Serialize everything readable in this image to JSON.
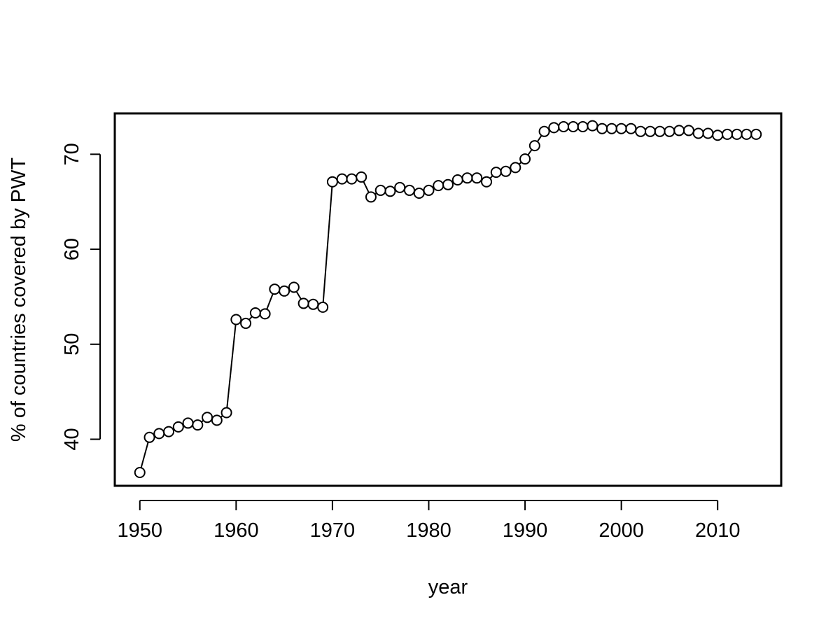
{
  "chart_data": {
    "type": "line",
    "title": "",
    "xlabel": "year",
    "ylabel": "% of countries covered by PWT",
    "xlim": [
      1947.4,
      2016.6
    ],
    "ylim": [
      35.1,
      74.3
    ],
    "xticks": [
      1950,
      1960,
      1970,
      1980,
      1990,
      2000,
      2010
    ],
    "yticks": [
      40,
      50,
      60,
      70
    ],
    "grid": false,
    "legend": "none",
    "marker": "open-circle",
    "series": [
      {
        "x": [
          1950,
          1951,
          1952,
          1953,
          1954,
          1955,
          1956,
          1957,
          1958,
          1959,
          1960,
          1961,
          1962,
          1963,
          1964,
          1965,
          1966,
          1967,
          1968,
          1969,
          1970,
          1971,
          1972,
          1973,
          1974,
          1975,
          1976,
          1977,
          1978,
          1979,
          1980,
          1981,
          1982,
          1983,
          1984,
          1985,
          1986,
          1987,
          1988,
          1989,
          1990,
          1991,
          1992,
          1993,
          1994,
          1995,
          1996,
          1997,
          1998,
          1999,
          2000,
          2001,
          2002,
          2003,
          2004,
          2005,
          2006,
          2007,
          2008,
          2009,
          2010,
          2011,
          2012,
          2013,
          2014
        ],
        "values": [
          36.5,
          40.2,
          40.6,
          40.8,
          41.3,
          41.7,
          41.5,
          42.3,
          42.0,
          42.8,
          52.6,
          52.2,
          53.3,
          53.2,
          55.8,
          55.6,
          56.0,
          54.3,
          54.2,
          53.9,
          67.1,
          67.4,
          67.4,
          67.6,
          65.5,
          66.2,
          66.1,
          66.5,
          66.2,
          65.9,
          66.2,
          66.7,
          66.8,
          67.3,
          67.5,
          67.5,
          67.1,
          68.1,
          68.2,
          68.6,
          69.5,
          70.9,
          72.4,
          72.8,
          72.9,
          72.9,
          72.9,
          73.0,
          72.7,
          72.7,
          72.7,
          72.7,
          72.4,
          72.4,
          72.4,
          72.4,
          72.5,
          72.5,
          72.2,
          72.2,
          72.0,
          72.1,
          72.1,
          72.1,
          72.1
        ],
        "color": "#000000"
      }
    ]
  }
}
